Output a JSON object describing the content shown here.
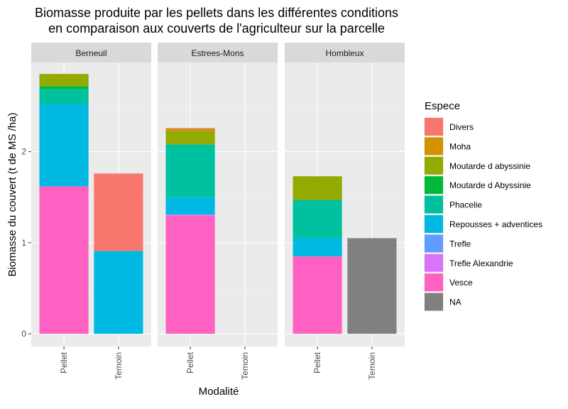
{
  "chart_data": {
    "type": "bar",
    "stacked": true,
    "title": "Biomasse produite par les pellets dans les différentes conditions\nen comparaison aux couverts de l'agriculteur sur la parcelle",
    "xlabel": "Modalité",
    "ylabel": "Biomasse du couvert (t de MS /ha)",
    "ylim": [
      -0.14,
      2.98
    ],
    "yticks": [
      0,
      1,
      2
    ],
    "grid": true,
    "legend": {
      "title": "Espece",
      "placement": "right"
    },
    "categories": [
      "Pellet",
      "Temoin"
    ],
    "species": [
      {
        "name": "Divers",
        "color": "#F8766D"
      },
      {
        "name": "Moha",
        "color": "#D39200"
      },
      {
        "name": "Moutarde d abyssinie",
        "color": "#93AA00"
      },
      {
        "name": "Moutarde d Abyssinie",
        "color": "#00BA38"
      },
      {
        "name": "Phacelie",
        "color": "#00C19F"
      },
      {
        "name": "Repousses + adventices",
        "color": "#00B9E3"
      },
      {
        "name": "Trefle",
        "color": "#619CFF"
      },
      {
        "name": "Trefle Alexandrie",
        "color": "#DB72FB"
      },
      {
        "name": "Vesce",
        "color": "#FF61C3"
      },
      {
        "name": "NA",
        "color": "#808080"
      }
    ],
    "panels": [
      {
        "name": "Berneuil",
        "bars": {
          "Pellet": {
            "Vesce": 1.62,
            "Repousses + adventices": 0.9,
            "Phacelie": 0.17,
            "Moutarde d Abyssinie": 0.03,
            "Moutarde d abyssinie": 0.13,
            "Moha": 0.005
          },
          "Temoin": {
            "Repousses + adventices": 0.91,
            "Divers": 0.85
          }
        }
      },
      {
        "name": "Estrees-Mons",
        "bars": {
          "Pellet": {
            "Vesce": 1.3,
            "Trefle Alexandrie": 0.01,
            "Repousses + adventices": 0.19,
            "Phacelie": 0.58,
            "Moutarde d abyssinie": 0.15,
            "Moha": 0.02,
            "Divers": 0.01
          },
          "Temoin": {}
        }
      },
      {
        "name": "Hombleux",
        "bars": {
          "Pellet": {
            "Vesce": 0.85,
            "Repousses + adventices": 0.2,
            "Phacelie": 0.42,
            "Moutarde d abyssinie": 0.26
          },
          "Temoin": {
            "NA": 1.05
          }
        }
      }
    ]
  }
}
